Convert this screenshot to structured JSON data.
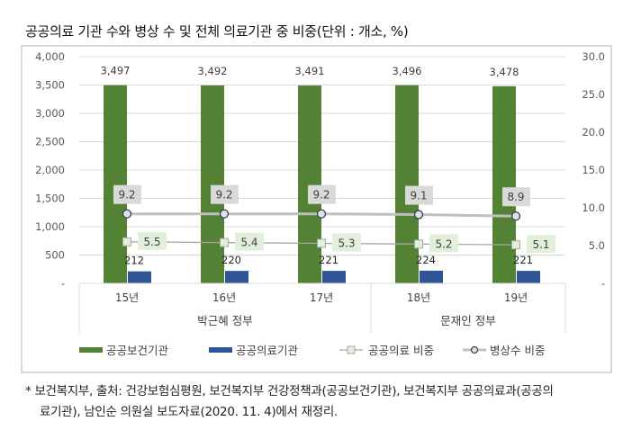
{
  "title": "공공의료 기관 수와 병상 수 및 전체 의료기관 중 비중(단위 : 개소, %)",
  "footnote": {
    "line1": "*  보건복지부, 출처: 건강보험심평원, 보건복지부 건강정책과(공공보건기관), 보건복지부 공공의료과(공공의",
    "line2": "료기관), 남인순 의원실 보도자료(2020. 11. 4)에서 재정리."
  },
  "chart_data": {
    "type": "bar",
    "title": "공공의료 기관 수와 병상 수 및 전체 의료기관 중 비중(단위 : 개소, %)",
    "categories": [
      "15년",
      "16년",
      "17년",
      "18년",
      "19년"
    ],
    "category_groups": [
      {
        "label": "박근혜 정부",
        "categories": [
          "15년",
          "16년",
          "17년"
        ]
      },
      {
        "label": "문재인 정부",
        "categories": [
          "18년",
          "19년"
        ]
      }
    ],
    "series": [
      {
        "name": "공공보건기관",
        "type": "bar",
        "axis": "left",
        "color": "#548235",
        "values": [
          3497,
          3492,
          3491,
          3496,
          3478
        ],
        "labels": [
          "3,497",
          "3,492",
          "3,491",
          "3,496",
          "3,478"
        ]
      },
      {
        "name": "공공의료기관",
        "type": "bar",
        "axis": "left",
        "color": "#2f5597",
        "values": [
          212,
          220,
          221,
          224,
          221
        ],
        "labels": [
          "212",
          "220",
          "221",
          "224",
          "221"
        ]
      },
      {
        "name": "공공의료 비중",
        "type": "line",
        "axis": "right",
        "color": "#a6a6a6",
        "marker": "square",
        "values": [
          5.5,
          5.4,
          5.3,
          5.2,
          5.1
        ],
        "labels": [
          "5.5",
          "5.4",
          "5.3",
          "5.2",
          "5.1"
        ]
      },
      {
        "name": "병상수 비중",
        "type": "line",
        "axis": "right",
        "color": "#bfbfbf",
        "marker": "circle",
        "values": [
          9.2,
          9.2,
          9.2,
          9.1,
          8.9
        ],
        "labels": [
          "9.2",
          "9.2",
          "9.2",
          "9.1",
          "8.9"
        ]
      }
    ],
    "left_axis": {
      "ylim": [
        0,
        4000
      ],
      "ticks": [
        "-",
        "500",
        "1,000",
        "1,500",
        "2,000",
        "2,500",
        "3,000",
        "3,500",
        "4,000"
      ]
    },
    "right_axis": {
      "ylim": [
        0,
        30
      ],
      "ticks": [
        "-",
        "5.0",
        "10.0",
        "15.0",
        "20.0",
        "25.0",
        "30.0"
      ]
    },
    "xlabel": "",
    "ylabel": "",
    "grid": true,
    "legend_position": "bottom"
  }
}
